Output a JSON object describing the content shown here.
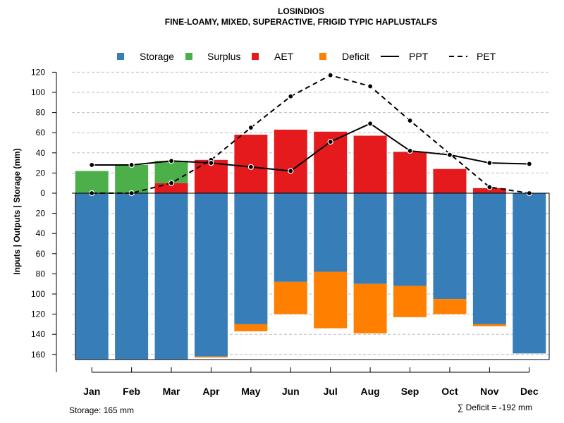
{
  "chart_data": {
    "type": "bar",
    "title": "LOSINDIOS",
    "subtitle": "FINE-LOAMY, MIXED, SUPERACTIVE, FRIGID TYPIC HAPLUSTALFS",
    "ylabel": "Inputs | Outputs | Storage    (mm)",
    "ylim": [
      -165,
      120
    ],
    "yticks": [
      120,
      100,
      80,
      60,
      40,
      20,
      0,
      -20,
      -40,
      -60,
      -80,
      -100,
      -120,
      -140,
      -160
    ],
    "ytick_labels": [
      "120",
      "100",
      "80",
      "60",
      "40",
      "20",
      "0",
      "20",
      "40",
      "60",
      "80",
      "100",
      "120",
      "140",
      "160"
    ],
    "categories": [
      "Jan",
      "Feb",
      "Mar",
      "Apr",
      "May",
      "Jun",
      "Jul",
      "Aug",
      "Sep",
      "Oct",
      "Nov",
      "Dec"
    ],
    "legend": [
      {
        "name": "Storage",
        "kind": "box",
        "color": "#377EB8"
      },
      {
        "name": "Surplus",
        "kind": "box",
        "color": "#4DAF4A"
      },
      {
        "name": "AET",
        "kind": "box",
        "color": "#E41A1C"
      },
      {
        "name": "Deficit",
        "kind": "box",
        "color": "#FF7F00"
      },
      {
        "name": "PPT",
        "kind": "solid-line",
        "color": "#000000"
      },
      {
        "name": "PET",
        "kind": "dashed-line",
        "color": "#000000"
      }
    ],
    "series": {
      "storage": [
        165,
        165,
        165,
        162,
        130,
        88,
        78,
        90,
        92,
        105,
        130,
        159
      ],
      "deficit": [
        0,
        0,
        0,
        1,
        7,
        32,
        56,
        49,
        31,
        15,
        2,
        0
      ],
      "aet": [
        0,
        0,
        10,
        33,
        58,
        63,
        61,
        57,
        41,
        24,
        5,
        0
      ],
      "surplus": [
        22,
        28,
        22,
        0,
        0,
        0,
        0,
        0,
        0,
        0,
        0,
        0
      ],
      "ppt": [
        28,
        28,
        32,
        30,
        26,
        22,
        51,
        69,
        42,
        38,
        30,
        29
      ],
      "pet": [
        0,
        0,
        10,
        33,
        65,
        96,
        117,
        106,
        72,
        39,
        6,
        0
      ]
    },
    "footer_left": "Storage: 165 mm",
    "footer_right": "∑ Deficit = -192 mm"
  }
}
